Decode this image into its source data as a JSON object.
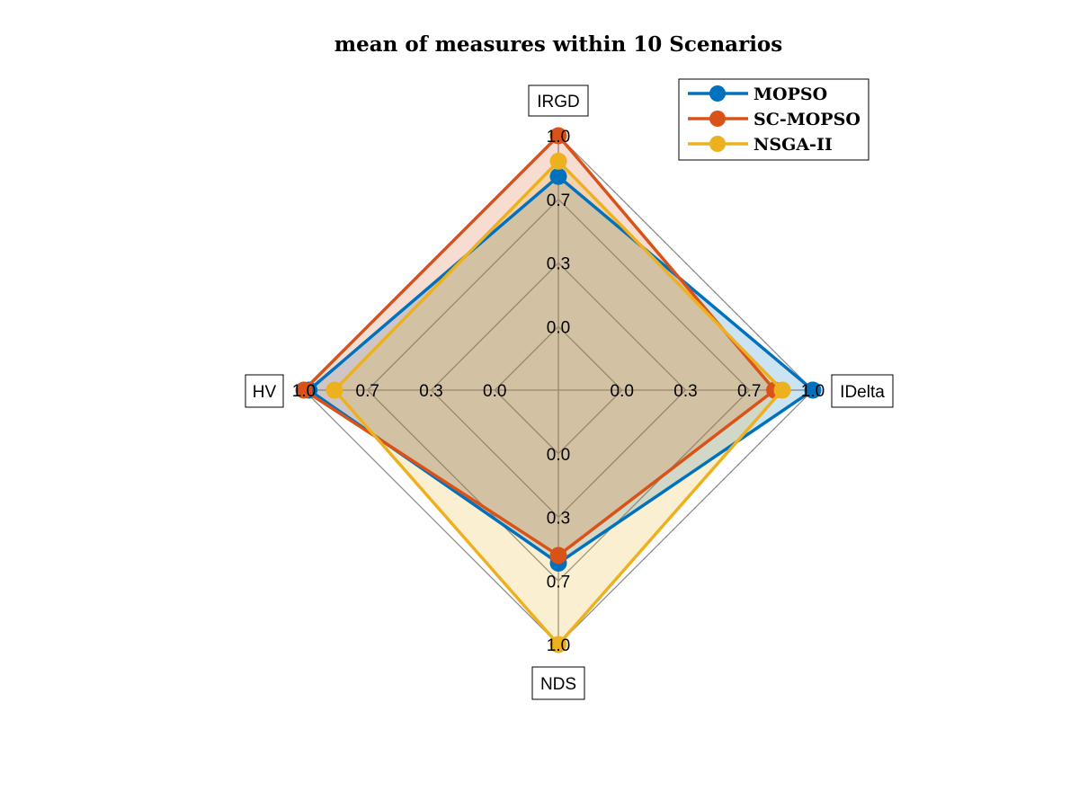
{
  "chart_data": {
    "type": "radar",
    "title": "mean of measures within 10 Scenarios",
    "axes": [
      "IRGD",
      "IDelta",
      "NDS",
      "HV"
    ],
    "tick_labels": [
      "0.0",
      "0.3",
      "0.7",
      "1.0"
    ],
    "rlim": [
      0,
      1
    ],
    "legend_position": "top-right",
    "series": [
      {
        "name": "MOPSO",
        "color": "#0072BD",
        "values": [
          0.84,
          1.0,
          0.68,
          0.98
        ]
      },
      {
        "name": "SC-MOPSO",
        "color": "#D95319",
        "values": [
          1.0,
          0.85,
          0.65,
          1.0
        ]
      },
      {
        "name": "NSGA-II",
        "color": "#EDB120",
        "values": [
          0.9,
          0.88,
          1.0,
          0.88
        ]
      }
    ]
  }
}
